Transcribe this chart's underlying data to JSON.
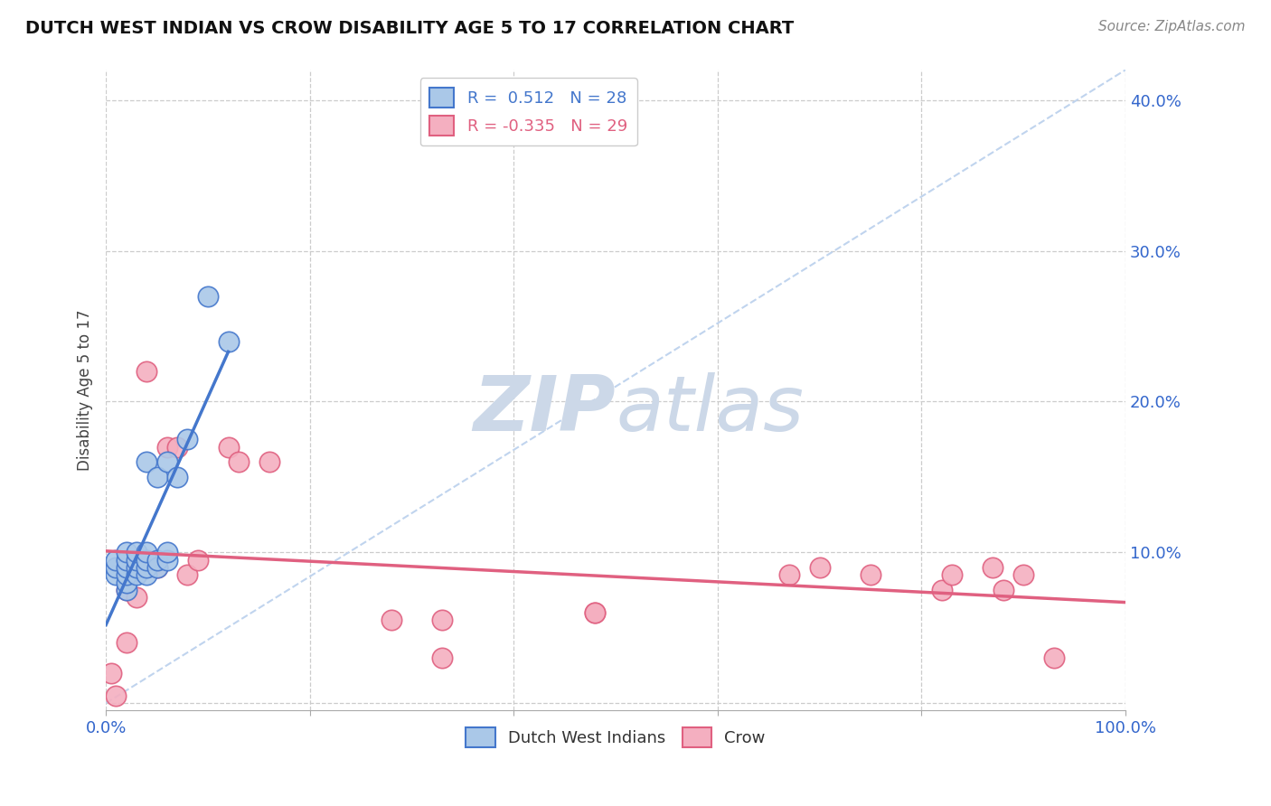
{
  "title": "DUTCH WEST INDIAN VS CROW DISABILITY AGE 5 TO 17 CORRELATION CHART",
  "source": "Source: ZipAtlas.com",
  "ylabel": "Disability Age 5 to 17",
  "xlim": [
    0.0,
    1.0
  ],
  "ylim": [
    -0.005,
    0.42
  ],
  "yticks": [
    0.0,
    0.1,
    0.2,
    0.3,
    0.4
  ],
  "yticklabels": [
    "",
    "10.0%",
    "20.0%",
    "30.0%",
    "40.0%"
  ],
  "xtick_positions": [
    0.0,
    0.2,
    0.4,
    0.6,
    0.8,
    1.0
  ],
  "xticklabels_main": [
    "0.0%",
    "",
    "",
    "",
    "",
    "100.0%"
  ],
  "grid_color": "#cccccc",
  "background_color": "#ffffff",
  "r_dwi": 0.512,
  "n_dwi": 28,
  "r_crow": -0.335,
  "n_crow": 29,
  "legend_label_dwi": "Dutch West Indians",
  "legend_label_crow": "Crow",
  "scatter_color_dwi": "#aac8e8",
  "scatter_color_crow": "#f4afc0",
  "line_color_dwi": "#4477cc",
  "line_color_crow": "#e06080",
  "diagonal_color": "#c0d4ee",
  "watermark_color": "#ccd8e8",
  "tick_color": "#3366cc",
  "dwi_points_x": [
    0.01,
    0.01,
    0.01,
    0.02,
    0.02,
    0.02,
    0.02,
    0.02,
    0.02,
    0.03,
    0.03,
    0.03,
    0.03,
    0.04,
    0.04,
    0.04,
    0.04,
    0.04,
    0.05,
    0.05,
    0.05,
    0.06,
    0.06,
    0.06,
    0.07,
    0.08,
    0.1,
    0.12
  ],
  "dwi_points_y": [
    0.085,
    0.09,
    0.095,
    0.075,
    0.08,
    0.085,
    0.09,
    0.095,
    0.1,
    0.085,
    0.09,
    0.095,
    0.1,
    0.085,
    0.09,
    0.095,
    0.1,
    0.16,
    0.09,
    0.095,
    0.15,
    0.095,
    0.1,
    0.16,
    0.15,
    0.175,
    0.27,
    0.24
  ],
  "crow_points_x": [
    0.005,
    0.01,
    0.02,
    0.02,
    0.03,
    0.03,
    0.04,
    0.05,
    0.06,
    0.07,
    0.08,
    0.09,
    0.12,
    0.13,
    0.16,
    0.28,
    0.33,
    0.33,
    0.48,
    0.48,
    0.67,
    0.7,
    0.75,
    0.82,
    0.83,
    0.87,
    0.88,
    0.9,
    0.93
  ],
  "crow_points_y": [
    0.02,
    0.005,
    0.04,
    0.075,
    0.07,
    0.09,
    0.22,
    0.09,
    0.17,
    0.17,
    0.085,
    0.095,
    0.17,
    0.16,
    0.16,
    0.055,
    0.055,
    0.03,
    0.06,
    0.06,
    0.085,
    0.09,
    0.085,
    0.075,
    0.085,
    0.09,
    0.075,
    0.085,
    0.03
  ]
}
